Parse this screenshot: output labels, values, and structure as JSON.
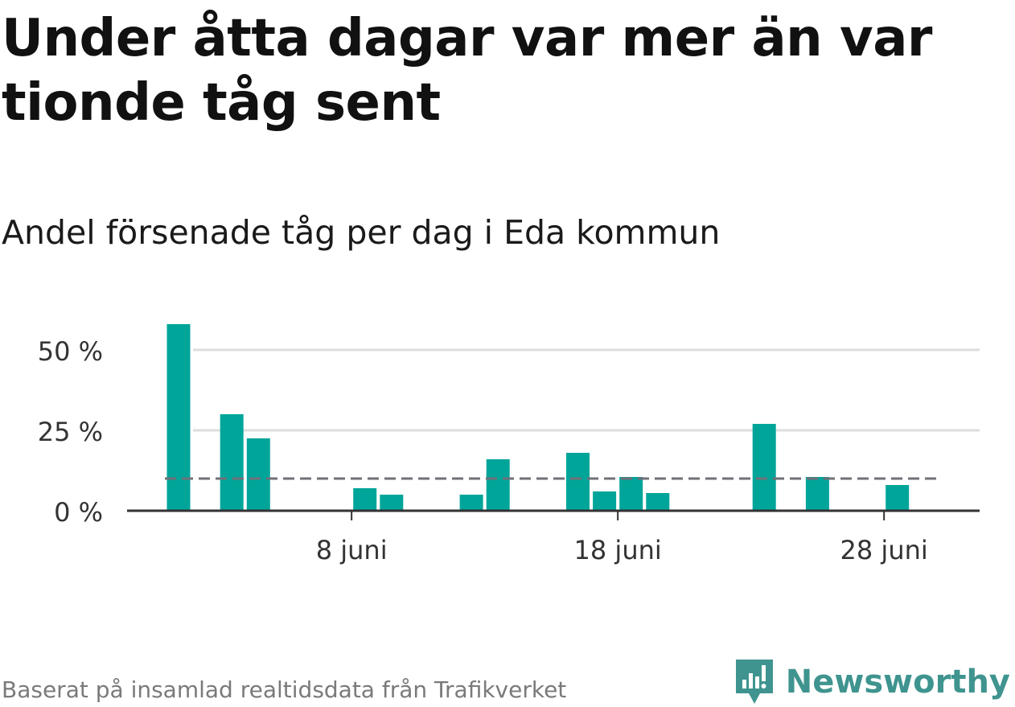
{
  "header": {
    "title": "Under åtta dagar var mer än var tionde tåg sent",
    "subtitle": "Andel försenade tåg per dag i Eda kommun"
  },
  "footer": {
    "source": "Baserat på insamlad realtidsdata från Trafikverket",
    "brand": "Newsworthy"
  },
  "colors": {
    "bar": "#00a59a",
    "reference_line": "#707078",
    "grid": "#dddddd",
    "axis": "#333333",
    "brand": "#3f948f"
  },
  "chart_data": {
    "type": "bar",
    "x": [
      "2024-06-01",
      "2024-06-02",
      "2024-06-03",
      "2024-06-04",
      "2024-06-05",
      "2024-06-06",
      "2024-06-07",
      "2024-06-08",
      "2024-06-09",
      "2024-06-10",
      "2024-06-11",
      "2024-06-12",
      "2024-06-13",
      "2024-06-14",
      "2024-06-15",
      "2024-06-16",
      "2024-06-17",
      "2024-06-18",
      "2024-06-19",
      "2024-06-20",
      "2024-06-21",
      "2024-06-22",
      "2024-06-23",
      "2024-06-24",
      "2024-06-25",
      "2024-06-26",
      "2024-06-27",
      "2024-06-28",
      "2024-06-29"
    ],
    "values": [
      58,
      0,
      30,
      22.5,
      0,
      0,
      0,
      7,
      5,
      0,
      0,
      5,
      16,
      0,
      0,
      18,
      6,
      10.5,
      5.5,
      0,
      0,
      0,
      27,
      0,
      10.5,
      0,
      0,
      8,
      0
    ],
    "reference_line": 10,
    "ylim": [
      0,
      60
    ],
    "yticks": [
      0,
      25,
      50
    ],
    "ytick_labels": [
      "0 %",
      "25 %",
      "50 %"
    ],
    "xticks": [
      "2024-06-08",
      "2024-06-18",
      "2024-06-28"
    ],
    "xtick_labels": [
      "8 juni",
      "18 juni",
      "28 juni"
    ],
    "xlabel": "",
    "ylabel": "",
    "grid": true
  }
}
